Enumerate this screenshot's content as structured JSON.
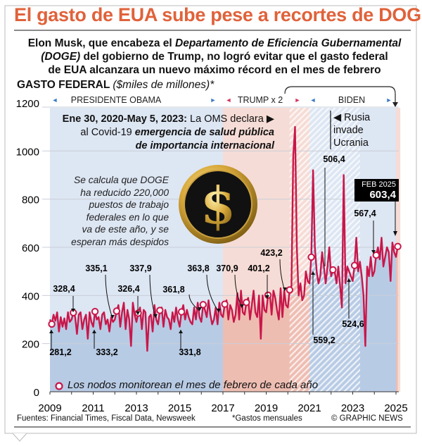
{
  "header": {
    "title": "El gasto de EUA sube pese a recortes de DOGE",
    "subtitle_line1_a": "Elon Musk, que encabeza el ",
    "subtitle_line1_b": "Departamento de Eficiencia Gubernamental",
    "subtitle_line2_a": "(DOGE)",
    "subtitle_line2_b": " del gobierno de Trump, no logró evitar que el gasto federal",
    "subtitle_line3": "de EUA alcanzara un nuevo máximo récord en el mes de febrero"
  },
  "chart_data": {
    "type": "line",
    "title": "GASTO FEDERAL",
    "ylabel": "($miles de millones)*",
    "ylim": [
      0,
      1200
    ],
    "yticks": [
      "0",
      "200",
      "400",
      "600",
      "800",
      "1000",
      "1200"
    ],
    "xlim": [
      2009,
      2025.2
    ],
    "xticks": [
      "2009",
      "2011",
      "2013",
      "2015",
      "2017",
      "2019",
      "2021",
      "2023",
      "2025"
    ],
    "grid": true,
    "colors": {
      "line": "#c8174a",
      "obama_biden": "#dde6f3",
      "trump": "#f6dcd6",
      "title": "#e0623a"
    },
    "periods": [
      {
        "label": "PRESIDENTE OBAMA",
        "start": 2009,
        "end": 2017,
        "party_color": "#3a7bc8"
      },
      {
        "label": "TRUMP x 2",
        "start": 2017,
        "end": 2021,
        "party_color": "#d2335c"
      },
      {
        "label": "BIDEN",
        "start": 2021,
        "end": 2025,
        "party_color": "#3a7bc8"
      }
    ],
    "covid_period": {
      "start": "2020-01-30",
      "end": "2023-05-05"
    },
    "monthly_start_year": 2009,
    "monthly": [
      [
        300,
        281,
        320,
        295,
        330,
        250,
        310,
        270,
        305,
        260,
        330,
        290
      ],
      [
        300,
        328,
        310,
        240,
        320,
        330,
        260,
        300,
        320,
        220,
        330,
        290
      ],
      [
        270,
        333,
        300,
        310,
        260,
        320,
        330,
        280,
        300,
        250,
        310,
        290
      ],
      [
        300,
        335,
        360,
        270,
        330,
        370,
        260,
        340,
        300,
        190,
        370,
        320
      ],
      [
        290,
        326,
        350,
        260,
        340,
        330,
        170,
        310,
        320,
        250,
        360,
        300
      ],
      [
        280,
        338,
        350,
        270,
        340,
        310,
        300,
        260,
        330,
        290,
        350,
        300
      ],
      [
        270,
        332,
        360,
        300,
        340,
        310,
        290,
        280,
        350,
        300,
        370,
        310
      ],
      [
        290,
        362,
        340,
        310,
        380,
        320,
        280,
        300,
        350,
        280,
        370,
        320
      ],
      [
        310,
        364,
        380,
        300,
        360,
        340,
        290,
        320,
        410,
        300,
        420,
        330
      ],
      [
        320,
        371,
        390,
        300,
        360,
        420,
        330,
        310,
        400,
        220,
        400,
        340
      ],
      [
        330,
        401,
        410,
        320,
        420,
        390,
        340,
        300,
        430,
        310,
        420,
        360
      ],
      [
        350,
        423,
        440,
        980,
        1100,
        600,
        400,
        450,
        380,
        400,
        500,
        460
      ],
      [
        450,
        559,
        920,
        600,
        500,
        450,
        480,
        580,
        520,
        450,
        520,
        600
      ],
      [
        480,
        506,
        500,
        450,
        520,
        440,
        350,
        900,
        450,
        520,
        500,
        480
      ],
      [
        460,
        525,
        640,
        500,
        540,
        480,
        400,
        190,
        520,
        480,
        560,
        480
      ],
      [
        500,
        567,
        600,
        550,
        640,
        520,
        560,
        600,
        580,
        460,
        620,
        580
      ],
      [
        560,
        603
      ]
    ],
    "february_nodes": {
      "years": [
        2009,
        2010,
        2011,
        2012,
        2013,
        2014,
        2015,
        2016,
        2017,
        2018,
        2019,
        2020,
        2021,
        2022,
        2023,
        2024,
        2025
      ],
      "values": [
        281.2,
        328.4,
        333.2,
        335.1,
        326.4,
        337.9,
        331.8,
        361.8,
        363.8,
        370.9,
        401.2,
        423.2,
        559.2,
        506.4,
        524.6,
        567.4,
        603.4
      ],
      "labels": [
        "281,2",
        "328,4",
        "333,2",
        "335,1",
        "326,4",
        "337,9",
        "331,8",
        "361,8",
        "363,8",
        "370,9",
        "401,2",
        "423,2",
        "559,2",
        "506,4",
        "524,6",
        "567,4"
      ]
    },
    "highlight": {
      "label": "FEB 2025",
      "value": "603,4"
    },
    "annotations": {
      "covid_a": "Ene 30, 2020-May 5, 2023:",
      "covid_b": " La OMS declara ▶",
      "covid_c": "al Covid-19 ",
      "covid_d": "emergencia de salud pública",
      "covid_e": "de importancia internacional",
      "russia": [
        "◀ Rusia",
        "invade",
        "Ucrania"
      ],
      "doge": [
        "Se calcula que DOGE",
        "ha reducido 220,000",
        "puestos de trabajo",
        "federales en lo que",
        "va de este año, y se",
        "esperan más despidos"
      ],
      "legend": "Los nodos monitorean el mes de febrero de cada año"
    }
  },
  "footer": {
    "sources": "Fuentes: Financial Times, Fiscal Data, Newsweek",
    "note": "*Gastos mensuales",
    "credit": "© GRAPHIC NEWS"
  }
}
